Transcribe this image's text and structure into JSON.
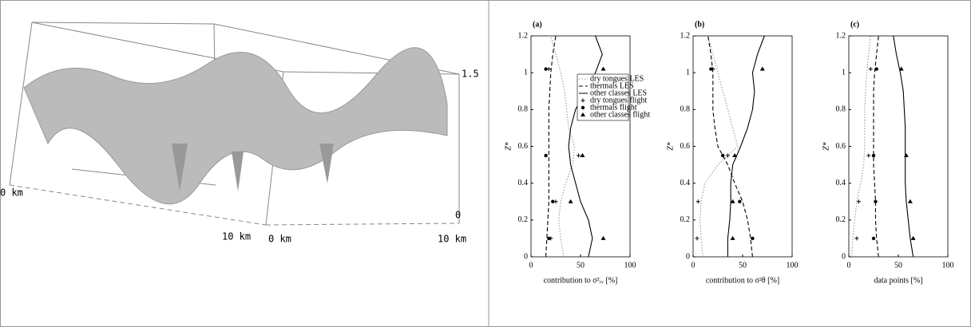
{
  "left_panel": {
    "labels": [
      "1.5",
      "0 km",
      "10 km",
      "0 km",
      "10 km",
      "0"
    ]
  },
  "chart_data": [
    {
      "type": "line",
      "title": "(a)",
      "xlabel": "contribution to σ²ᵣᵥ [%]",
      "ylabel": "Z*",
      "xlim": [
        0,
        100
      ],
      "xticks": [
        0,
        50,
        100
      ],
      "ylim": [
        0,
        1.2
      ],
      "yticks": [
        0,
        0.2,
        0.4,
        0.6,
        0.8,
        1,
        1.2
      ],
      "legend": "upper right",
      "series": [
        {
          "name": "dry tongues LES",
          "color": "#999999",
          "style": "dotted",
          "z": [
            0,
            0.1,
            0.2,
            0.3,
            0.4,
            0.5,
            0.6,
            0.7,
            0.8,
            0.9,
            1,
            1.1,
            1.2
          ],
          "values": [
            33,
            30,
            28,
            30,
            35,
            42,
            44,
            38,
            36,
            34,
            30,
            25,
            20
          ]
        },
        {
          "name": "thermals LES",
          "color": "#000000",
          "style": "dashed",
          "z": [
            0,
            0.1,
            0.2,
            0.3,
            0.4,
            0.5,
            0.6,
            0.7,
            0.8,
            0.9,
            1,
            1.1,
            1.2
          ],
          "values": [
            15,
            16,
            17,
            18,
            18,
            18,
            18,
            18,
            18,
            19,
            20,
            22,
            25
          ]
        },
        {
          "name": "other classes LES",
          "color": "#000000",
          "style": "solid",
          "z": [
            0,
            0.1,
            0.2,
            0.3,
            0.4,
            0.5,
            0.6,
            0.7,
            0.8,
            0.9,
            1,
            1.1,
            1.2
          ],
          "values": [
            58,
            62,
            58,
            50,
            45,
            40,
            38,
            40,
            45,
            55,
            65,
            72,
            65
          ]
        },
        {
          "name": "dry tongues flight",
          "color": "#000000",
          "marker": "plus",
          "z": [
            0.1,
            0.3,
            0.55,
            1.02
          ],
          "values": [
            20,
            25,
            48,
            18
          ]
        },
        {
          "name": "thermals flight",
          "color": "#000000",
          "marker": "circle",
          "z": [
            0.1,
            0.3,
            0.55,
            1.02
          ],
          "values": [
            18,
            22,
            15,
            15
          ]
        },
        {
          "name": "other classes flight",
          "color": "#000000",
          "marker": "triangle",
          "z": [
            0.1,
            0.3,
            0.55,
            1.02
          ],
          "values": [
            73,
            40,
            52,
            73
          ]
        }
      ]
    },
    {
      "type": "line",
      "title": "(b)",
      "xlabel": "contribution to σ²θ [%]",
      "ylabel": "Z*",
      "xlim": [
        0,
        100
      ],
      "xticks": [
        0,
        50,
        100
      ],
      "ylim": [
        0,
        1.2
      ],
      "yticks": [
        0,
        0.2,
        0.4,
        0.6,
        0.8,
        1,
        1.2
      ],
      "series": [
        {
          "color": "#999999",
          "style": "dotted",
          "z": [
            0,
            0.1,
            0.2,
            0.3,
            0.4,
            0.5,
            0.6,
            0.7,
            0.8,
            0.9,
            1,
            1.1,
            1.2
          ],
          "values": [
            10,
            8,
            7,
            8,
            12,
            25,
            45,
            40,
            35,
            30,
            25,
            20,
            15
          ]
        },
        {
          "color": "#000000",
          "style": "dashed",
          "z": [
            0,
            0.1,
            0.2,
            0.3,
            0.4,
            0.5,
            0.6,
            0.7,
            0.8,
            0.9,
            1,
            1.1,
            1.2
          ],
          "values": [
            60,
            58,
            55,
            50,
            42,
            35,
            25,
            22,
            20,
            20,
            20,
            18,
            15
          ]
        },
        {
          "color": "#000000",
          "style": "solid",
          "z": [
            0,
            0.1,
            0.2,
            0.3,
            0.4,
            0.5,
            0.6,
            0.7,
            0.8,
            0.9,
            1,
            1.1,
            1.2
          ],
          "values": [
            35,
            35,
            37,
            38,
            38,
            40,
            48,
            55,
            60,
            62,
            60,
            65,
            72
          ]
        },
        {
          "color": "#000000",
          "marker": "plus",
          "z": [
            0.1,
            0.3,
            0.55,
            1.02
          ],
          "values": [
            4,
            5,
            35,
            20
          ]
        },
        {
          "color": "#000000",
          "marker": "circle",
          "z": [
            0.1,
            0.3,
            0.55,
            1.02
          ],
          "values": [
            60,
            47,
            30,
            18
          ]
        },
        {
          "color": "#000000",
          "marker": "triangle",
          "z": [
            0.1,
            0.3,
            0.55,
            1.02
          ],
          "values": [
            40,
            40,
            42,
            70
          ]
        }
      ]
    },
    {
      "type": "line",
      "title": "(c)",
      "xlabel": "data points [%]",
      "ylabel": "Z*",
      "xlim": [
        0,
        100
      ],
      "xticks": [
        0,
        50,
        100
      ],
      "ylim": [
        0,
        1.2
      ],
      "yticks": [
        0,
        0.2,
        0.4,
        0.6,
        0.8,
        1,
        1.2
      ],
      "series": [
        {
          "color": "#999999",
          "style": "dotted",
          "z": [
            0,
            0.1,
            0.2,
            0.3,
            0.4,
            0.5,
            0.6,
            0.7,
            0.8,
            0.9,
            1,
            1.1,
            1.2
          ],
          "values": [
            3,
            4,
            6,
            8,
            12,
            15,
            16,
            16,
            16,
            17,
            18,
            20,
            22
          ]
        },
        {
          "color": "#000000",
          "style": "dashed",
          "z": [
            0,
            0.1,
            0.2,
            0.3,
            0.4,
            0.5,
            0.6,
            0.7,
            0.8,
            0.9,
            1,
            1.1,
            1.2
          ],
          "values": [
            30,
            28,
            27,
            27,
            26,
            25,
            25,
            25,
            25,
            25,
            26,
            28,
            30
          ]
        },
        {
          "color": "#000000",
          "style": "solid",
          "z": [
            0,
            0.1,
            0.2,
            0.3,
            0.4,
            0.5,
            0.6,
            0.7,
            0.8,
            0.9,
            1,
            1.1,
            1.2
          ],
          "values": [
            65,
            62,
            60,
            58,
            57,
            57,
            57,
            57,
            56,
            55,
            52,
            48,
            45
          ]
        },
        {
          "color": "#000000",
          "marker": "plus",
          "z": [
            0.1,
            0.3,
            0.55,
            1.02
          ],
          "values": [
            8,
            10,
            20,
            22
          ]
        },
        {
          "color": "#000000",
          "marker": "circle",
          "z": [
            0.1,
            0.3,
            0.55,
            1.02
          ],
          "values": [
            25,
            27,
            25,
            28
          ]
        },
        {
          "color": "#000000",
          "marker": "triangle",
          "z": [
            0.1,
            0.3,
            0.55,
            1.02
          ],
          "values": [
            65,
            62,
            58,
            53
          ]
        }
      ]
    }
  ]
}
